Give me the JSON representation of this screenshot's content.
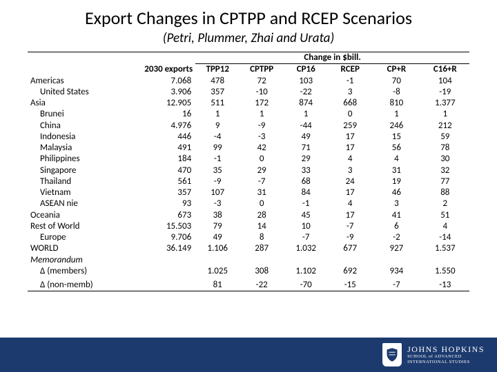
{
  "title": "Export Changes in CPTPP and RCEP Scenarios",
  "subtitle": "(Petri, Plummer, Zhai and Urata)",
  "table": {
    "super_header": "Change in $bill.",
    "columns": [
      "",
      "2030 exports",
      "TPP12",
      "CPTPP",
      "CP16",
      "RCEP",
      "CP+R",
      "C16+R"
    ],
    "col_widths_pct": [
      24,
      14,
      10,
      10,
      10,
      10,
      11,
      11
    ],
    "rows": [
      {
        "label": "Americas",
        "indent": 0,
        "exports": "7.068",
        "v": [
          "478",
          "72",
          "103",
          "-1",
          "70",
          "104"
        ]
      },
      {
        "label": "United States",
        "indent": 1,
        "exports": "3.906",
        "v": [
          "357",
          "-10",
          "-22",
          "3",
          "-8",
          "-19"
        ]
      },
      {
        "label": "Asia",
        "indent": 0,
        "exports": "12.905",
        "v": [
          "511",
          "172",
          "874",
          "668",
          "810",
          "1.377"
        ]
      },
      {
        "label": "Brunei",
        "indent": 1,
        "exports": "16",
        "v": [
          "1",
          "1",
          "1",
          "0",
          "1",
          "1"
        ]
      },
      {
        "label": "China",
        "indent": 1,
        "exports": "4.976",
        "v": [
          "9",
          "-9",
          "-44",
          "259",
          "246",
          "212"
        ]
      },
      {
        "label": "Indonesia",
        "indent": 1,
        "exports": "446",
        "v": [
          "-4",
          "-3",
          "49",
          "17",
          "15",
          "59"
        ]
      },
      {
        "label": "Malaysia",
        "indent": 1,
        "exports": "491",
        "v": [
          "99",
          "42",
          "71",
          "17",
          "56",
          "78"
        ]
      },
      {
        "label": "Philippines",
        "indent": 1,
        "exports": "184",
        "v": [
          "-1",
          "0",
          "29",
          "4",
          "4",
          "30"
        ]
      },
      {
        "label": "Singapore",
        "indent": 1,
        "exports": "470",
        "v": [
          "35",
          "29",
          "33",
          "3",
          "31",
          "32"
        ]
      },
      {
        "label": "Thailand",
        "indent": 1,
        "exports": "561",
        "v": [
          "-9",
          "-7",
          "68",
          "24",
          "19",
          "77"
        ]
      },
      {
        "label": "Vietnam",
        "indent": 1,
        "exports": "357",
        "v": [
          "107",
          "31",
          "84",
          "17",
          "46",
          "88"
        ]
      },
      {
        "label": "ASEAN nie",
        "indent": 1,
        "exports": "93",
        "v": [
          "-3",
          "0",
          "-1",
          "4",
          "3",
          "2"
        ]
      },
      {
        "label": "Oceania",
        "indent": 0,
        "exports": "673",
        "v": [
          "38",
          "28",
          "45",
          "17",
          "41",
          "51"
        ]
      },
      {
        "label": "Rest of World",
        "indent": 0,
        "exports": "15.503",
        "v": [
          "79",
          "14",
          "10",
          "-7",
          "6",
          "4"
        ]
      },
      {
        "label": "Europe",
        "indent": 1,
        "exports": "9.706",
        "v": [
          "49",
          "8",
          "-7",
          "-9",
          "-2",
          "-14"
        ]
      },
      {
        "label": "WORLD",
        "indent": 0,
        "exports": "36.149",
        "v": [
          "1.106",
          "287",
          "1.032",
          "677",
          "927",
          "1.537"
        ]
      }
    ],
    "memorandum_label": "Memorandum",
    "delta_members": {
      "label": "Δ (members)",
      "v": [
        "1.025",
        "308",
        "1.102",
        "692",
        "934",
        "1.550"
      ]
    },
    "delta_nonmemb": {
      "label": "Δ (non-memb)",
      "v": [
        "81",
        "-22",
        "-70",
        "-15",
        "-7",
        "-13"
      ]
    }
  },
  "colors": {
    "footer_bg": "#1c3a6e",
    "text": "#000000",
    "border": "#000000"
  },
  "logo": {
    "main": "JOHNS HOPKINS",
    "sub1": "SCHOOL of ADVANCED",
    "sub2": "INTERNATIONAL STUDIES"
  }
}
